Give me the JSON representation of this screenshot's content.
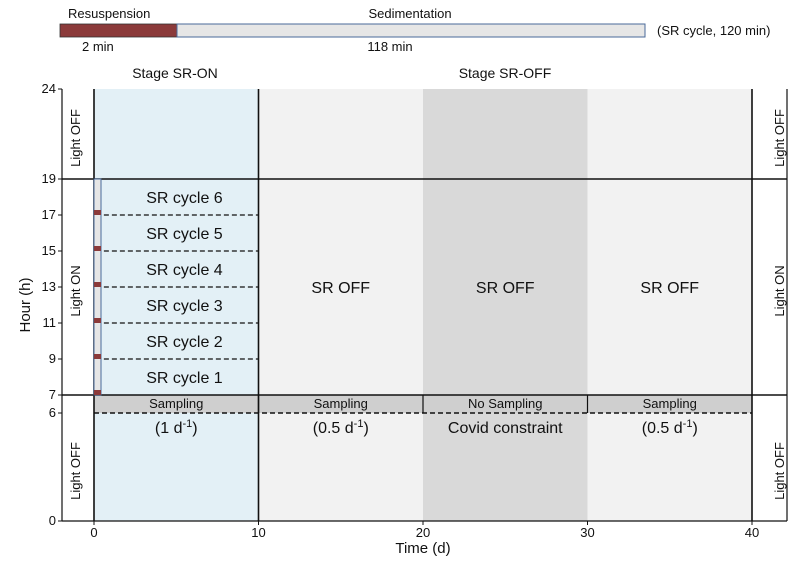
{
  "header_bar": {
    "resuspension_label": "Resuspension",
    "sedimentation_label": "Sedimentation",
    "resuspension_duration": "2 min",
    "sedimentation_duration": "118 min",
    "cycle_note": "(SR cycle, 120 min)",
    "resuspension_minutes": 2,
    "cycle_minutes": 120
  },
  "colors": {
    "resuspension": "#8b3a3a",
    "sedimentation": "#e6e6e6",
    "stage_sr_on": "#e3f0f6",
    "stage_sr_off": "#f2f2f2",
    "covid_band": "#d9d9d9",
    "sampling_band": "#cfcfcf",
    "axis": "#111111"
  },
  "stages": {
    "sr_on": "Stage SR-ON",
    "sr_off": "Stage SR-OFF"
  },
  "axes": {
    "x_label": "Time (d)",
    "y_label": "Hour (h)",
    "x_range": [
      -2,
      41
    ],
    "y_range": [
      0,
      24
    ],
    "x_ticks": [
      0,
      10,
      20,
      30,
      40
    ],
    "y_ticks": [
      0,
      6,
      7,
      9,
      11,
      13,
      15,
      17,
      19,
      24
    ]
  },
  "light": {
    "off_label": "Light OFF",
    "on_label": "Light ON",
    "on_start_hour": 7,
    "on_end_hour": 19
  },
  "sr_cycles": {
    "labels": [
      "SR cycle 1",
      "SR cycle 2",
      "SR cycle 3",
      "SR cycle 4",
      "SR cycle 5",
      "SR cycle 6"
    ],
    "start_hours": [
      7,
      9,
      11,
      13,
      15,
      17
    ]
  },
  "sr_off_labels": [
    "SR OFF",
    "SR OFF",
    "SR OFF"
  ],
  "sampling": {
    "band_start_hour": 6,
    "band_end_hour": 7,
    "segments": [
      {
        "label": "Sampling",
        "rate_prefix": "(1 d",
        "rate_suffix": ")",
        "superscript": "-1"
      },
      {
        "label": "Sampling",
        "rate_prefix": "(0.5 d",
        "rate_suffix": ")",
        "superscript": "-1"
      },
      {
        "label": "No Sampling",
        "rate_prefix": "Covid constraint",
        "rate_suffix": "",
        "superscript": ""
      },
      {
        "label": "Sampling",
        "rate_prefix": "(0.5 d",
        "rate_suffix": ")",
        "superscript": "-1"
      }
    ],
    "stage_bounds_days": [
      [
        0,
        10
      ],
      [
        10,
        20
      ],
      [
        20,
        30
      ],
      [
        30,
        40
      ]
    ]
  }
}
